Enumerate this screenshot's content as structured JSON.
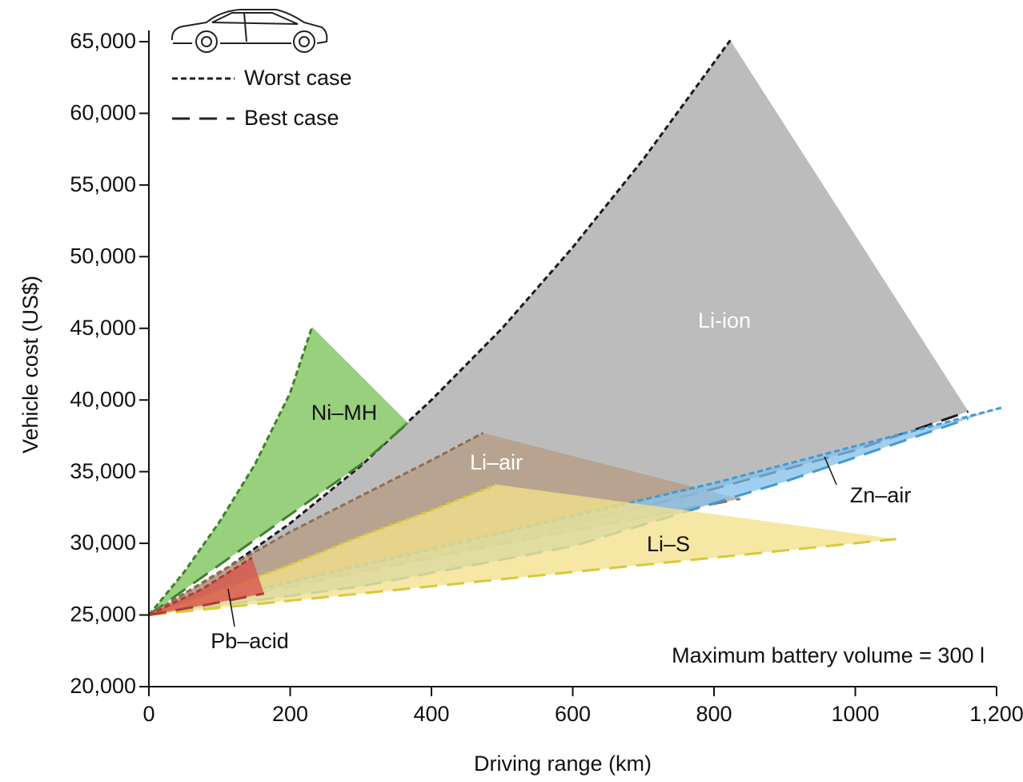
{
  "chart_data": {
    "type": "area-range",
    "x_label": "Driving range (km)",
    "y_label": "Vehicle cost (US$)",
    "annotation": "Maximum battery volume = 300 l",
    "legend": [
      "Worst case",
      "Best case"
    ],
    "xlim": [
      0,
      1200
    ],
    "xticks": [
      0,
      200,
      400,
      600,
      800,
      1000,
      {
        "value": 1200,
        "label": "1,200"
      }
    ],
    "ylim": [
      20000,
      65000
    ],
    "yticks": [
      {
        "value": 20000,
        "label": "20,000"
      },
      {
        "value": 25000,
        "label": "25,000"
      },
      {
        "value": 30000,
        "label": "30,000"
      },
      {
        "value": 35000,
        "label": "35,000"
      },
      {
        "value": 40000,
        "label": "40,000"
      },
      {
        "value": 45000,
        "label": "45,000"
      },
      {
        "value": 50000,
        "label": "50,000"
      },
      {
        "value": 55000,
        "label": "55,000"
      },
      {
        "value": 60000,
        "label": "60,000"
      },
      {
        "value": 65000,
        "label": "65,000"
      }
    ],
    "series": [
      {
        "name": "Li-ion",
        "color": "#bdbcbc",
        "edge_color": "#1a1a1a",
        "worst_x": [
          0,
          100,
          200,
          300,
          400,
          500,
          600,
          700,
          823
        ],
        "worst_y": [
          25000,
          27900,
          31400,
          35400,
          40000,
          45000,
          50650,
          56800,
          65100
        ],
        "best_x": [
          0,
          200,
          400,
          600,
          800,
          1000,
          1160
        ],
        "best_y": [
          25000,
          27000,
          29000,
          31300,
          33800,
          36500,
          39200
        ]
      },
      {
        "name": "Ni–MH",
        "color": "#7cc35a",
        "edge_color": "#3f7f2a",
        "worst_x": [
          0,
          50,
          100,
          150,
          200,
          231
        ],
        "worst_y": [
          25000,
          28000,
          31500,
          35500,
          40500,
          45100
        ],
        "best_x": [
          0,
          100,
          200,
          300,
          367
        ],
        "best_y": [
          25000,
          28500,
          32000,
          35500,
          38400
        ]
      },
      {
        "name": "Li–air",
        "color": "#b59c84",
        "edge_color": "#8a6e55",
        "worst_x": [
          0,
          100,
          200,
          300,
          400,
          473
        ],
        "worst_y": [
          25000,
          28000,
          30800,
          33300,
          35800,
          37700
        ],
        "best_x": [
          0,
          200,
          400,
          600,
          837
        ],
        "best_y": [
          25000,
          27000,
          29000,
          30900,
          33100
        ]
      },
      {
        "name": "Zn–air",
        "color": "#86c2ea",
        "edge_color": "#3f9ad4",
        "worst_x": [
          0,
          400,
          800,
          1210
        ],
        "worst_y": [
          25000,
          29600,
          34200,
          39500
        ],
        "best_x": [
          0,
          300,
          600,
          900,
          1160
        ],
        "best_y": [
          25000,
          27000,
          29800,
          34300,
          38700
        ]
      },
      {
        "name": "Li–S",
        "color": "#f3e08a",
        "edge_color": "#d9c83a",
        "worst_x": [
          0,
          100,
          200,
          300,
          400,
          492
        ],
        "worst_y": [
          25000,
          26700,
          28500,
          30500,
          32300,
          34100
        ],
        "best_x": [
          0,
          200,
          400,
          600,
          800,
          1058
        ],
        "best_y": [
          25000,
          26000,
          27000,
          28000,
          29000,
          30300
        ]
      },
      {
        "name": "Pb–acid",
        "color": "#d9534a",
        "edge_color": "#b03a33",
        "worst_x": [
          0,
          75,
          146
        ],
        "worst_y": [
          25000,
          26800,
          29000
        ],
        "best_x": [
          0,
          80,
          163
        ],
        "best_y": [
          25000,
          25700,
          26500
        ]
      }
    ]
  }
}
